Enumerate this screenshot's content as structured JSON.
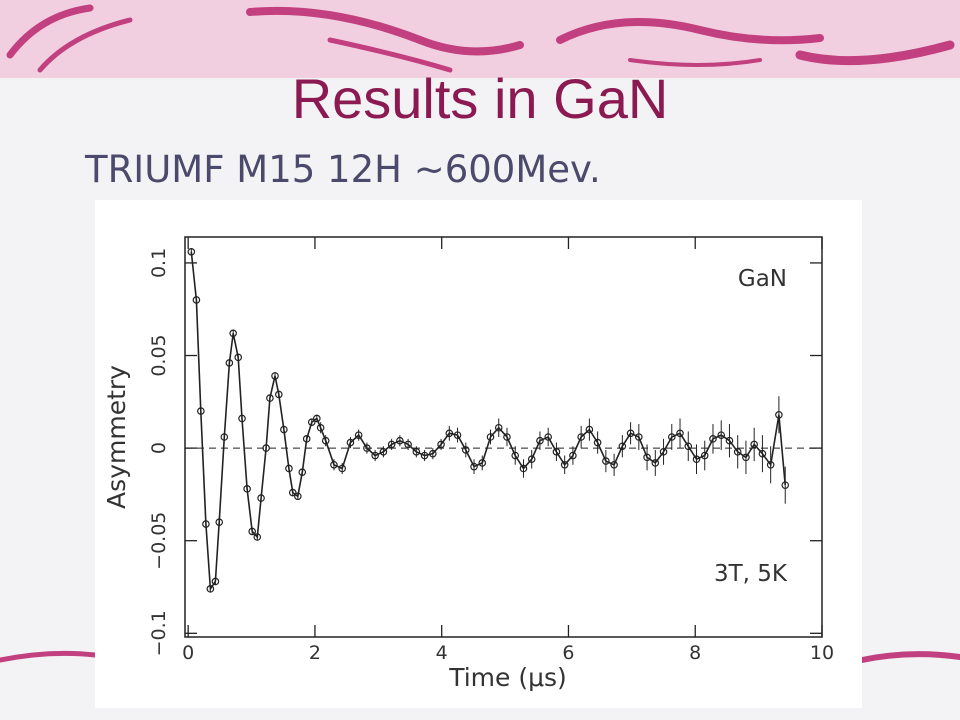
{
  "slide": {
    "title": "Results in GaN",
    "subtitle": "TRIUMF M15 12H ~600Mev."
  },
  "chart_data": {
    "type": "errorbar-scatter",
    "x_label": "Time (μs)",
    "y_label": "Asymmetry",
    "annotations": [
      "GaN",
      "3T, 5K"
    ],
    "xlim": [
      -0.05,
      10
    ],
    "ylim": [
      -0.102,
      0.114
    ],
    "xticks": [
      0,
      2,
      4,
      6,
      8,
      10
    ],
    "yticks": [
      {
        "value": -0.1,
        "label": "−0.1"
      },
      {
        "value": -0.05,
        "label": "−0.05"
      },
      0,
      0.05,
      0.1
    ],
    "zero_line": true,
    "color": "#222222",
    "x": [
      0.05,
      0.13,
      0.2,
      0.28,
      0.35,
      0.43,
      0.49,
      0.57,
      0.65,
      0.71,
      0.79,
      0.85,
      0.93,
      1.01,
      1.09,
      1.15,
      1.23,
      1.29,
      1.37,
      1.43,
      1.51,
      1.59,
      1.65,
      1.73,
      1.8,
      1.87,
      1.95,
      2.03,
      2.09,
      2.17,
      2.3,
      2.43,
      2.56,
      2.69,
      2.82,
      2.95,
      3.08,
      3.21,
      3.34,
      3.47,
      3.6,
      3.73,
      3.86,
      3.99,
      4.12,
      4.25,
      4.38,
      4.51,
      4.64,
      4.77,
      4.9,
      5.03,
      5.16,
      5.29,
      5.42,
      5.55,
      5.68,
      5.81,
      5.94,
      6.07,
      6.2,
      6.33,
      6.46,
      6.59,
      6.72,
      6.85,
      6.98,
      7.11,
      7.24,
      7.37,
      7.5,
      7.63,
      7.76,
      7.89,
      8.02,
      8.15,
      8.28,
      8.41,
      8.54,
      8.67,
      8.8,
      8.93,
      9.06,
      9.19,
      9.32,
      9.42
    ],
    "values": [
      0.106,
      0.08,
      0.02,
      -0.041,
      -0.076,
      -0.072,
      -0.04,
      0.006,
      0.046,
      0.062,
      0.049,
      0.016,
      -0.022,
      -0.045,
      -0.048,
      -0.027,
      0.0,
      0.027,
      0.039,
      0.029,
      0.01,
      -0.011,
      -0.024,
      -0.026,
      -0.013,
      0.005,
      0.014,
      0.016,
      0.011,
      0.004,
      -0.009,
      -0.011,
      0.003,
      0.007,
      0.0,
      -0.004,
      -0.002,
      0.002,
      0.004,
      0.002,
      -0.002,
      -0.004,
      -0.003,
      0.002,
      0.008,
      0.007,
      -0.001,
      -0.01,
      -0.008,
      0.006,
      0.011,
      0.006,
      -0.004,
      -0.011,
      -0.006,
      0.004,
      0.006,
      -0.002,
      -0.009,
      -0.004,
      0.006,
      0.01,
      0.003,
      -0.007,
      -0.009,
      0.001,
      0.008,
      0.006,
      -0.005,
      -0.008,
      -0.002,
      0.006,
      0.008,
      0.001,
      -0.006,
      -0.004,
      0.005,
      0.007,
      0.004,
      -0.002,
      -0.005,
      0.002,
      -0.003,
      -0.009,
      0.018,
      -0.02
    ],
    "errors": [
      0.002,
      0.002,
      0.002,
      0.002,
      0.002,
      0.002,
      0.002,
      0.002,
      0.002,
      0.002,
      0.002,
      0.002,
      0.002,
      0.002,
      0.002,
      0.002,
      0.002,
      0.002,
      0.002,
      0.002,
      0.002,
      0.002,
      0.002,
      0.002,
      0.002,
      0.002,
      0.002,
      0.002,
      0.003,
      0.003,
      0.003,
      0.003,
      0.003,
      0.003,
      0.003,
      0.003,
      0.003,
      0.003,
      0.003,
      0.003,
      0.003,
      0.003,
      0.003,
      0.003,
      0.004,
      0.004,
      0.004,
      0.004,
      0.004,
      0.004,
      0.005,
      0.005,
      0.005,
      0.005,
      0.005,
      0.005,
      0.005,
      0.005,
      0.005,
      0.005,
      0.006,
      0.006,
      0.006,
      0.006,
      0.006,
      0.006,
      0.006,
      0.007,
      0.007,
      0.007,
      0.007,
      0.007,
      0.008,
      0.008,
      0.008,
      0.008,
      0.008,
      0.008,
      0.009,
      0.009,
      0.009,
      0.009,
      0.01,
      0.01,
      0.01,
      0.01
    ]
  }
}
